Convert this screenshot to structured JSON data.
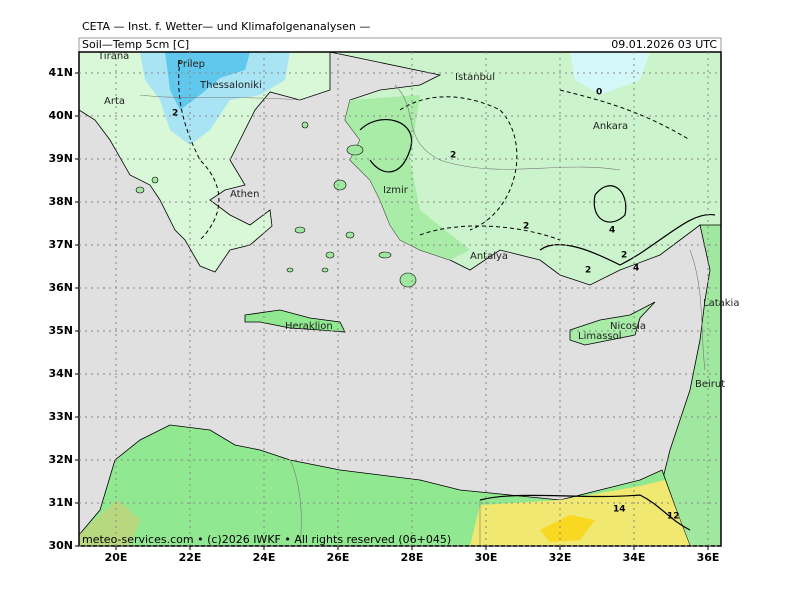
{
  "map": {
    "header": "CETA — Inst. f. Wetter— und Klimafolgenanalysen —",
    "subtitle": "Soil—Temp 5cm [C]",
    "date": "09.01.2026 03 UTC",
    "xticks": [
      {
        "value": 20,
        "label": "20E"
      },
      {
        "value": 22,
        "label": "22E"
      },
      {
        "value": 24,
        "label": "24E"
      },
      {
        "value": 26,
        "label": "26E"
      },
      {
        "value": 28,
        "label": "28E"
      },
      {
        "value": 30,
        "label": "30E"
      },
      {
        "value": 32,
        "label": "32E"
      },
      {
        "value": 34,
        "label": "34E"
      },
      {
        "value": 36,
        "label": "36E"
      }
    ],
    "yticks": [
      {
        "value": 41,
        "label": "41N"
      },
      {
        "value": 40,
        "label": "40N"
      },
      {
        "value": 39,
        "label": "39N"
      },
      {
        "value": 38,
        "label": "38N"
      },
      {
        "value": 37,
        "label": "37N"
      },
      {
        "value": 36,
        "label": "36N"
      },
      {
        "value": 35,
        "label": "35N"
      },
      {
        "value": 34,
        "label": "34N"
      },
      {
        "value": 33,
        "label": "33N"
      },
      {
        "value": 32,
        "label": "32N"
      },
      {
        "value": 31,
        "label": "31N"
      },
      {
        "value": 30,
        "label": "30N"
      }
    ],
    "cities": [
      "Tirana",
      "Prilep",
      "Thessaloniki",
      "Arta",
      "Athen",
      "Istanbul",
      "Izmir",
      "Ankara",
      "Antalya",
      "Heraklion",
      "Nicosia",
      "Limassol",
      "Latakia",
      "Beirut"
    ],
    "contour_labels": [
      "2",
      "0",
      "2",
      "2",
      "4",
      "2",
      "2",
      "4",
      "14",
      "12"
    ],
    "footer": "meteo-services.com • (c)2026 IWKF • All rights reserved (06+045)"
  }
}
